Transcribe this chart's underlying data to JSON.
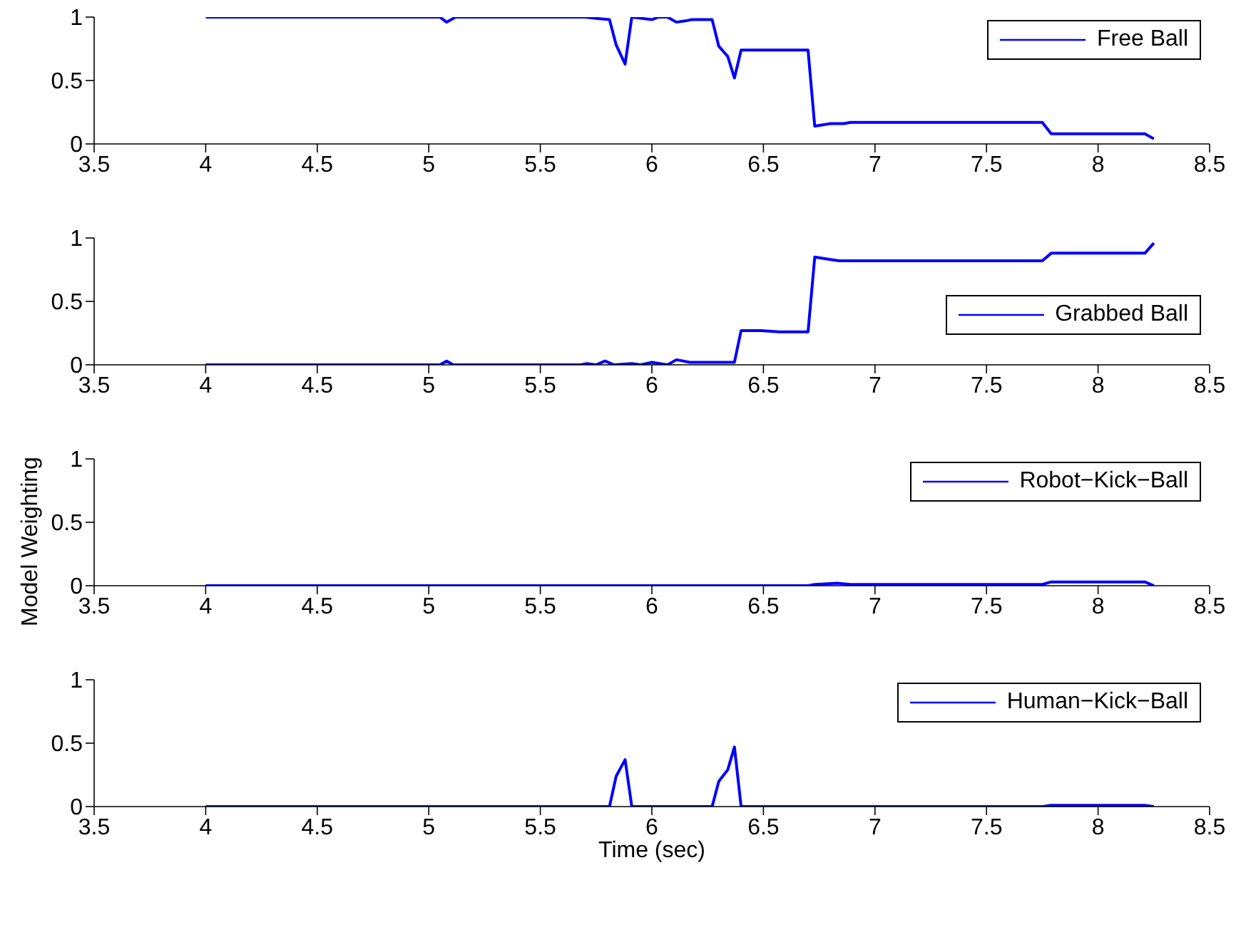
{
  "chart_data": [
    {
      "type": "line",
      "x": [
        4.0,
        5.05,
        5.08,
        5.12,
        5.7,
        5.75,
        5.81,
        5.84,
        5.88,
        5.91,
        6.0,
        6.03,
        6.07,
        6.11,
        6.15,
        6.18,
        6.27,
        6.3,
        6.34,
        6.37,
        6.4,
        6.52,
        6.57,
        6.7,
        6.73,
        6.8,
        6.86,
        6.89,
        7.75,
        7.79,
        8.21,
        8.25
      ],
      "series": [
        {
          "name": "Free Ball",
          "color": "#0000ff",
          "values": [
            1,
            1,
            0.96,
            1,
            1,
            0.99,
            0.98,
            0.78,
            0.63,
            1,
            0.98,
            1,
            1,
            0.96,
            0.97,
            0.98,
            0.98,
            0.77,
            0.69,
            0.52,
            0.74,
            0.74,
            0.74,
            0.74,
            0.14,
            0.16,
            0.16,
            0.17,
            0.17,
            0.08,
            0.08,
            0.04
          ]
        }
      ],
      "xlim": [
        3.5,
        8.5
      ],
      "xticks": [
        3.5,
        4,
        4.5,
        5,
        5.5,
        6,
        6.5,
        7,
        7.5,
        8,
        8.5
      ],
      "ylim": [
        0,
        1
      ],
      "yticks": [
        0,
        0.5,
        1
      ],
      "legend": "top right"
    },
    {
      "type": "line",
      "x": [
        4.0,
        5.05,
        5.08,
        5.11,
        5.68,
        5.71,
        5.75,
        5.79,
        5.83,
        5.91,
        5.95,
        6.0,
        6.07,
        6.11,
        6.17,
        6.37,
        6.4,
        6.49,
        6.57,
        6.7,
        6.73,
        6.8,
        6.84,
        7.75,
        7.79,
        8.21,
        8.25
      ],
      "series": [
        {
          "name": "Grabbed Ball",
          "color": "#0000ff",
          "values": [
            0,
            0,
            0.03,
            0,
            0,
            0.01,
            0,
            0.03,
            0,
            0.01,
            0,
            0.02,
            0,
            0.04,
            0.02,
            0.02,
            0.27,
            0.27,
            0.26,
            0.26,
            0.85,
            0.83,
            0.82,
            0.82,
            0.88,
            0.88,
            0.96
          ]
        }
      ],
      "xlim": [
        3.5,
        8.5
      ],
      "xticks": [
        3.5,
        4,
        4.5,
        5,
        5.5,
        6,
        6.5,
        7,
        7.5,
        8,
        8.5
      ],
      "ylim": [
        0,
        1
      ],
      "yticks": [
        0,
        0.5,
        1
      ],
      "legend": "right"
    },
    {
      "type": "line",
      "ylabel": "Model Weighting",
      "x": [
        4.0,
        6.7,
        6.73,
        6.83,
        6.89,
        7.75,
        7.79,
        8.21,
        8.25
      ],
      "series": [
        {
          "name": "Robot−Kick−Ball",
          "color": "#0000ff",
          "values": [
            0,
            0,
            0.01,
            0.02,
            0.01,
            0.01,
            0.03,
            0.03,
            0
          ]
        }
      ],
      "xlim": [
        3.5,
        8.5
      ],
      "xticks": [
        3.5,
        4,
        4.5,
        5,
        5.5,
        6,
        6.5,
        7,
        7.5,
        8,
        8.5
      ],
      "ylim": [
        0,
        1
      ],
      "yticks": [
        0,
        0.5,
        1
      ],
      "legend": "top right"
    },
    {
      "type": "line",
      "xlabel": "Time (sec)",
      "x": [
        4.0,
        5.81,
        5.84,
        5.88,
        5.91,
        6.27,
        6.3,
        6.34,
        6.37,
        6.4,
        7.75,
        7.79,
        8.21,
        8.25
      ],
      "series": [
        {
          "name": "Human−Kick−Ball",
          "color": "#0000ff",
          "values": [
            0,
            0,
            0.24,
            0.37,
            0,
            0,
            0.2,
            0.29,
            0.47,
            0,
            0,
            0.01,
            0.01,
            0
          ]
        }
      ],
      "xlim": [
        3.5,
        8.5
      ],
      "xticks": [
        3.5,
        4,
        4.5,
        5,
        5.5,
        6,
        6.5,
        7,
        7.5,
        8,
        8.5
      ],
      "ylim": [
        0,
        1
      ],
      "yticks": [
        0,
        0.5,
        1
      ],
      "legend": "top right"
    }
  ]
}
